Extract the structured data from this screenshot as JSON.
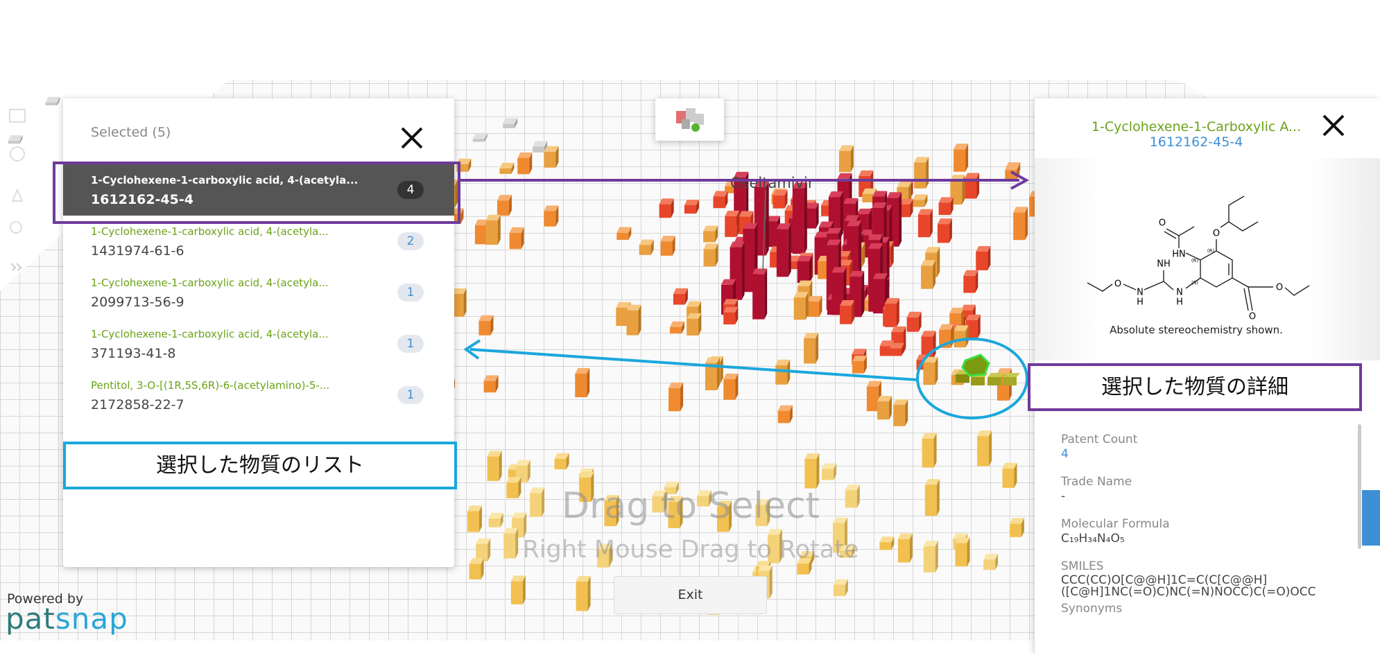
{
  "selected_panel": {
    "title": "Selected (5)",
    "items": [
      {
        "name": "1-Cyclohexene-1-carboxylic acid, 4-(acetyla...",
        "cas": "1612162-45-4",
        "count": 4
      },
      {
        "name": "1-Cyclohexene-1-carboxylic acid, 4-(acetyla...",
        "cas": "1431974-61-6",
        "count": 2
      },
      {
        "name": "1-Cyclohexene-1-carboxylic acid, 4-(acetyla...",
        "cas": "2099713-56-9",
        "count": 1
      },
      {
        "name": "1-Cyclohexene-1-carboxylic acid, 4-(acetyla...",
        "cas": "371193-41-8",
        "count": 1
      },
      {
        "name": "Pentitol, 3-O-[(1R,5S,6R)-6-(acetylamino)-5-...",
        "cas": "2172858-22-7",
        "count": 1
      }
    ]
  },
  "scene": {
    "label": "Oseltamivir",
    "hint": "Drag to Select",
    "subhint": "Right Mouse Drag to Rotate",
    "exit": "Exit"
  },
  "branding": {
    "powered_by": "Powered by",
    "logo_a": "pat",
    "logo_b": "snap"
  },
  "detail_panel": {
    "title": "1-Cyclohexene-1-Carboxylic A...",
    "cas": "1612162-45-4",
    "caption": "Absolute stereochemistry shown.",
    "molecule_labels": [
      "O",
      "HN",
      "O",
      "NH",
      "O",
      "N",
      "H",
      "N",
      "H",
      "O",
      "O",
      "(R)",
      "(R)",
      "(S)"
    ],
    "fields": [
      {
        "label": "Patent Count",
        "value": 4
      },
      {
        "label": "Trade Name",
        "value": "-"
      },
      {
        "label": "Molecular Formula",
        "value": "C₁₉H₃₄N₄O₅"
      },
      {
        "label": "SMILES",
        "value": [
          "CCC(CC)O[C@@H]1C=C(C[C@@H]",
          "([C@H]1NC(=O)C)NC(=N)NOCC)C(=O)OCC"
        ]
      },
      {
        "label": "Synonyms"
      }
    ]
  },
  "annotations": {
    "list": "選択した物質のリスト",
    "detail": "選択した物質の詳細"
  }
}
